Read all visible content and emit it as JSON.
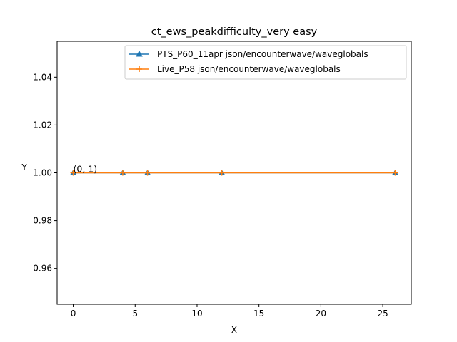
{
  "chart_data": {
    "type": "line",
    "title": "ct_ews_peakdifficulty_very easy",
    "xlabel": "X",
    "ylabel": "Y",
    "xlim": [
      -1.3,
      27.3
    ],
    "ylim": [
      0.945,
      1.055
    ],
    "xticks": [
      0,
      5,
      10,
      15,
      20,
      25
    ],
    "yticks": [
      0.96,
      0.98,
      1.0,
      1.02,
      1.04
    ],
    "xtick_labels": [
      "0",
      "5",
      "10",
      "15",
      "20",
      "25"
    ],
    "ytick_labels": [
      "0.96",
      "0.98",
      "1.00",
      "1.02",
      "1.04"
    ],
    "grid": false,
    "legend_position": "top-right",
    "series": [
      {
        "name": "PTS_P60_11apr json/encounterwave/waveglobals",
        "color": "#1f77b4",
        "marker": "triangle",
        "x": [
          0,
          4,
          6,
          12,
          26
        ],
        "y": [
          1,
          1,
          1,
          1,
          1
        ]
      },
      {
        "name": "Live_P58 json/encounterwave/waveglobals",
        "color": "#ff7f0e",
        "marker": "plus",
        "x": [
          0,
          4,
          6,
          12,
          26
        ],
        "y": [
          1,
          1,
          1,
          1,
          1
        ]
      }
    ],
    "annotations": [
      {
        "text": "(0, 1)",
        "x": 0,
        "y": 1
      }
    ]
  }
}
